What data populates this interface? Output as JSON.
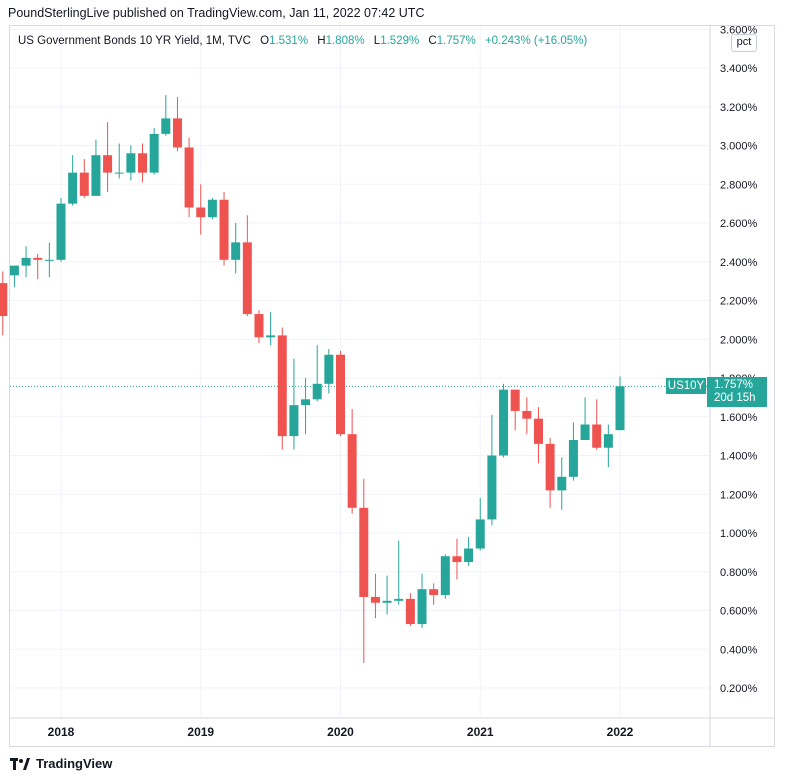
{
  "publish_line": "PoundSterlingLive published on TradingView.com, Jan 11, 2022 07:42 UTC",
  "legend": {
    "title": "US Government Bonds 10 YR Yield, 1M, TVC",
    "o_label": "O",
    "o_value": "1.531%",
    "h_label": "H",
    "h_value": "1.808%",
    "l_label": "L",
    "l_value": "1.529%",
    "c_label": "C",
    "c_value": "1.757%",
    "change": "+0.243% (+16.05%)"
  },
  "axis_unit": "pct",
  "price_tag": {
    "symbol": "US10Y",
    "last": "1.757%",
    "countdown": "20d 15h"
  },
  "footer_logo_text": "TradingView",
  "colors": {
    "up": "#26a69a",
    "down": "#ef5350",
    "grid": "#f0f3fa",
    "axis_text": "#131722"
  },
  "chart_data": {
    "type": "candlestick",
    "title": "US Government Bonds 10 YR Yield, 1M, TVC",
    "y_tick_labels": [
      "0.200%",
      "0.400%",
      "0.600%",
      "0.800%",
      "1.000%",
      "1.200%",
      "1.400%",
      "1.600%",
      "1.800%",
      "2.000%",
      "2.200%",
      "2.400%",
      "2.600%",
      "2.800%",
      "3.000%",
      "3.200%",
      "3.400%",
      "3.600%"
    ],
    "y_ticks": [
      0.2,
      0.4,
      0.6,
      0.8,
      1.0,
      1.2,
      1.4,
      1.6,
      1.8,
      2.0,
      2.2,
      2.4,
      2.6,
      2.8,
      3.0,
      3.2,
      3.4,
      3.6
    ],
    "x_tick_labels": [
      "2018",
      "2019",
      "2020",
      "2021",
      "2022"
    ],
    "ylim": [
      0.05,
      3.7
    ],
    "last_value": 1.757,
    "candles": [
      {
        "date": "2017-08",
        "o": 2.29,
        "h": 2.35,
        "l": 2.02,
        "c": 2.12
      },
      {
        "date": "2017-09",
        "o": 2.33,
        "h": 2.37,
        "l": 2.27,
        "c": 2.38
      },
      {
        "date": "2017-10",
        "o": 2.38,
        "h": 2.48,
        "l": 2.32,
        "c": 2.42
      },
      {
        "date": "2017-11",
        "o": 2.42,
        "h": 2.44,
        "l": 2.31,
        "c": 2.41
      },
      {
        "date": "2017-12",
        "o": 2.41,
        "h": 2.5,
        "l": 2.32,
        "c": 2.41
      },
      {
        "date": "2018-01",
        "o": 2.41,
        "h": 2.73,
        "l": 2.4,
        "c": 2.7
      },
      {
        "date": "2018-02",
        "o": 2.7,
        "h": 2.95,
        "l": 2.69,
        "c": 2.86
      },
      {
        "date": "2018-03",
        "o": 2.86,
        "h": 2.93,
        "l": 2.73,
        "c": 2.74
      },
      {
        "date": "2018-04",
        "o": 2.74,
        "h": 3.03,
        "l": 2.74,
        "c": 2.95
      },
      {
        "date": "2018-05",
        "o": 2.95,
        "h": 3.12,
        "l": 2.76,
        "c": 2.86
      },
      {
        "date": "2018-06",
        "o": 2.86,
        "h": 3.01,
        "l": 2.83,
        "c": 2.86
      },
      {
        "date": "2018-07",
        "o": 2.86,
        "h": 3.0,
        "l": 2.82,
        "c": 2.96
      },
      {
        "date": "2018-08",
        "o": 2.96,
        "h": 3.01,
        "l": 2.81,
        "c": 2.86
      },
      {
        "date": "2018-09",
        "o": 2.86,
        "h": 3.09,
        "l": 2.85,
        "c": 3.06
      },
      {
        "date": "2018-10",
        "o": 3.06,
        "h": 3.26,
        "l": 3.05,
        "c": 3.14
      },
      {
        "date": "2018-11",
        "o": 3.14,
        "h": 3.25,
        "l": 2.97,
        "c": 2.99
      },
      {
        "date": "2018-12",
        "o": 2.99,
        "h": 3.04,
        "l": 2.63,
        "c": 2.68
      },
      {
        "date": "2019-01",
        "o": 2.68,
        "h": 2.8,
        "l": 2.54,
        "c": 2.63
      },
      {
        "date": "2019-02",
        "o": 2.63,
        "h": 2.73,
        "l": 2.62,
        "c": 2.72
      },
      {
        "date": "2019-03",
        "o": 2.72,
        "h": 2.76,
        "l": 2.38,
        "c": 2.41
      },
      {
        "date": "2019-04",
        "o": 2.41,
        "h": 2.6,
        "l": 2.34,
        "c": 2.5
      },
      {
        "date": "2019-05",
        "o": 2.5,
        "h": 2.64,
        "l": 2.12,
        "c": 2.13
      },
      {
        "date": "2019-06",
        "o": 2.13,
        "h": 2.15,
        "l": 1.98,
        "c": 2.01
      },
      {
        "date": "2019-07",
        "o": 2.01,
        "h": 2.14,
        "l": 1.97,
        "c": 2.02
      },
      {
        "date": "2019-08",
        "o": 2.02,
        "h": 2.06,
        "l": 1.43,
        "c": 1.5
      },
      {
        "date": "2019-09",
        "o": 1.5,
        "h": 1.9,
        "l": 1.43,
        "c": 1.66
      },
      {
        "date": "2019-10",
        "o": 1.66,
        "h": 1.8,
        "l": 1.51,
        "c": 1.69
      },
      {
        "date": "2019-11",
        "o": 1.69,
        "h": 1.97,
        "l": 1.68,
        "c": 1.77
      },
      {
        "date": "2019-12",
        "o": 1.77,
        "h": 1.95,
        "l": 1.72,
        "c": 1.92
      },
      {
        "date": "2020-01",
        "o": 1.92,
        "h": 1.94,
        "l": 1.5,
        "c": 1.51
      },
      {
        "date": "2020-02",
        "o": 1.51,
        "h": 1.64,
        "l": 1.1,
        "c": 1.13
      },
      {
        "date": "2020-03",
        "o": 1.13,
        "h": 1.28,
        "l": 0.33,
        "c": 0.67
      },
      {
        "date": "2020-04",
        "o": 0.67,
        "h": 0.79,
        "l": 0.56,
        "c": 0.64
      },
      {
        "date": "2020-05",
        "o": 0.64,
        "h": 0.78,
        "l": 0.58,
        "c": 0.65
      },
      {
        "date": "2020-06",
        "o": 0.65,
        "h": 0.96,
        "l": 0.63,
        "c": 0.66
      },
      {
        "date": "2020-07",
        "o": 0.66,
        "h": 0.69,
        "l": 0.52,
        "c": 0.53
      },
      {
        "date": "2020-08",
        "o": 0.53,
        "h": 0.79,
        "l": 0.51,
        "c": 0.71
      },
      {
        "date": "2020-09",
        "o": 0.71,
        "h": 0.74,
        "l": 0.63,
        "c": 0.68
      },
      {
        "date": "2020-10",
        "o": 0.68,
        "h": 0.89,
        "l": 0.66,
        "c": 0.88
      },
      {
        "date": "2020-11",
        "o": 0.88,
        "h": 0.97,
        "l": 0.76,
        "c": 0.85
      },
      {
        "date": "2020-12",
        "o": 0.85,
        "h": 0.98,
        "l": 0.83,
        "c": 0.92
      },
      {
        "date": "2021-01",
        "o": 0.92,
        "h": 1.18,
        "l": 0.91,
        "c": 1.07
      },
      {
        "date": "2021-02",
        "o": 1.07,
        "h": 1.61,
        "l": 1.04,
        "c": 1.4
      },
      {
        "date": "2021-03",
        "o": 1.4,
        "h": 1.77,
        "l": 1.39,
        "c": 1.74
      },
      {
        "date": "2021-04",
        "o": 1.74,
        "h": 1.74,
        "l": 1.53,
        "c": 1.63
      },
      {
        "date": "2021-05",
        "o": 1.63,
        "h": 1.7,
        "l": 1.51,
        "c": 1.59
      },
      {
        "date": "2021-06",
        "o": 1.59,
        "h": 1.65,
        "l": 1.36,
        "c": 1.46
      },
      {
        "date": "2021-07",
        "o": 1.46,
        "h": 1.49,
        "l": 1.13,
        "c": 1.22
      },
      {
        "date": "2021-08",
        "o": 1.22,
        "h": 1.39,
        "l": 1.12,
        "c": 1.29
      },
      {
        "date": "2021-09",
        "o": 1.29,
        "h": 1.57,
        "l": 1.27,
        "c": 1.48
      },
      {
        "date": "2021-10",
        "o": 1.48,
        "h": 1.7,
        "l": 1.48,
        "c": 1.56
      },
      {
        "date": "2021-11",
        "o": 1.56,
        "h": 1.69,
        "l": 1.43,
        "c": 1.44
      },
      {
        "date": "2021-12",
        "o": 1.44,
        "h": 1.56,
        "l": 1.34,
        "c": 1.51
      },
      {
        "date": "2022-01",
        "o": 1.531,
        "h": 1.808,
        "l": 1.529,
        "c": 1.757
      }
    ]
  }
}
